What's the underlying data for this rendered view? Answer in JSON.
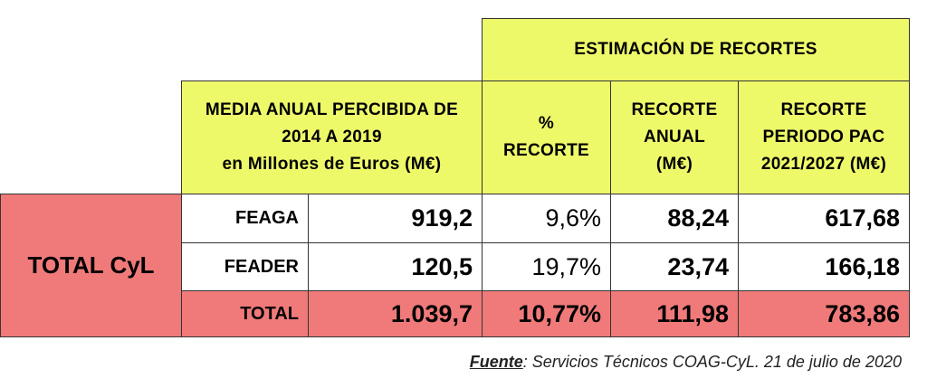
{
  "header": {
    "estimacion": "ESTIMACIÓN DE RECORTES",
    "media_lines": [
      "MEDIA ANUAL PERCIBIDA DE",
      "2014 A 2019",
      "en Millones de Euros (M€)"
    ],
    "pct_lines": [
      "%",
      "RECORTE"
    ],
    "anual_lines": [
      "RECORTE",
      "ANUAL",
      "(M€)"
    ],
    "periodo_lines": [
      "RECORTE",
      "PERIODO PAC",
      "2021/2027 (M€)"
    ]
  },
  "group_label": "TOTAL CyL",
  "rows": [
    {
      "label": "FEAGA",
      "media": "919,2",
      "pct": "9,6%",
      "anual": "88,24",
      "periodo": "617,68"
    },
    {
      "label": "FEADER",
      "media": "120,5",
      "pct": "19,7%",
      "anual": "23,74",
      "periodo": "166,18"
    },
    {
      "label": "TOTAL",
      "media": "1.039,7",
      "pct": "10,77%",
      "anual": "111,98",
      "periodo": "783,86"
    }
  ],
  "source": {
    "label": "Fuente",
    "text": ": Servicios Técnicos COAG-CyL.  21 de julio de 2020"
  }
}
